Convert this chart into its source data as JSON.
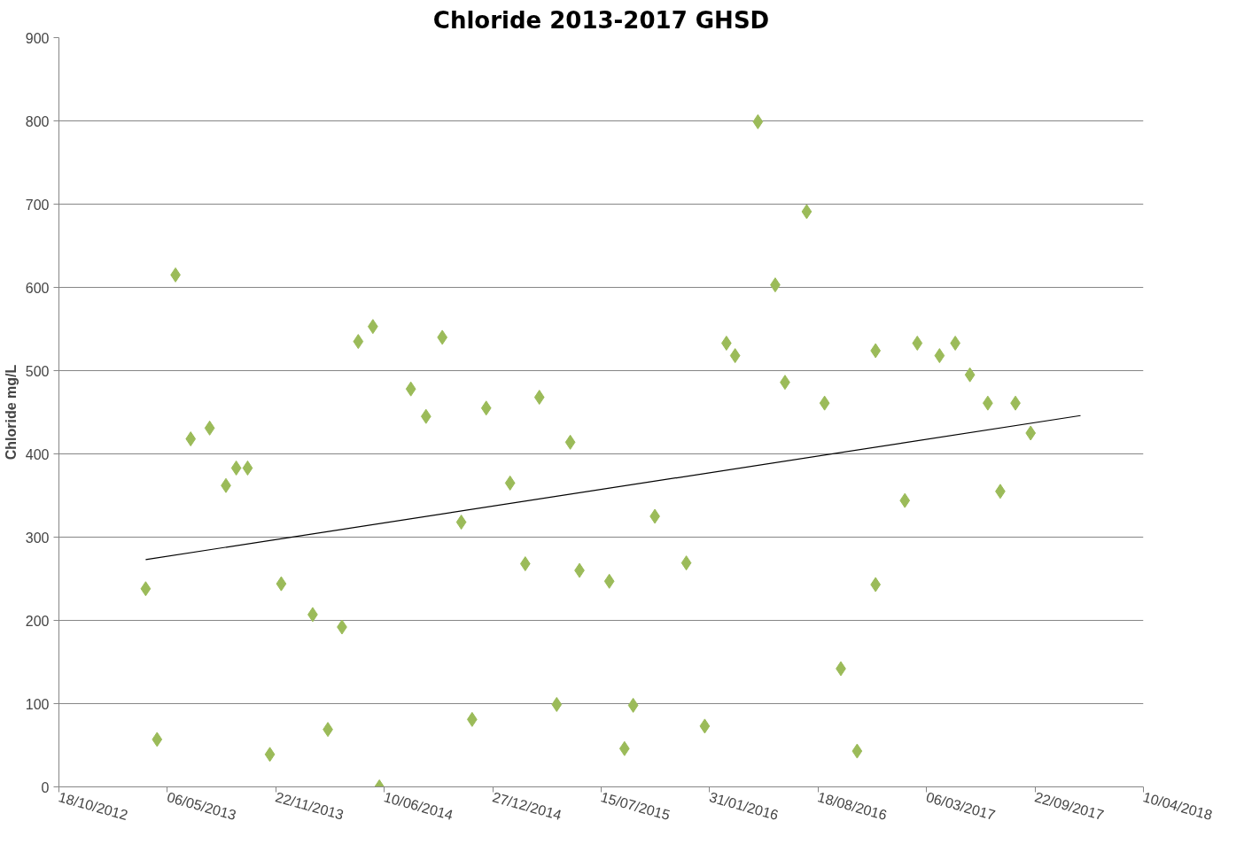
{
  "chart_data": {
    "type": "scatter",
    "title": "Chloride 2013-2017 GHSD",
    "ylabel": "Chloride mg/L",
    "marker": "diamond",
    "grid": "y",
    "ylim": [
      0,
      900
    ],
    "yticks": [
      0,
      100,
      200,
      300,
      400,
      500,
      600,
      700,
      800,
      900
    ],
    "xlim": [
      "2012-10-18",
      "2018-04-10"
    ],
    "xticks": [
      {
        "value": "2012-10-18",
        "label": "18/10/2012"
      },
      {
        "value": "2013-05-06",
        "label": "06/05/2013"
      },
      {
        "value": "2013-11-22",
        "label": "22/11/2013"
      },
      {
        "value": "2014-06-10",
        "label": "10/06/2014"
      },
      {
        "value": "2014-12-27",
        "label": "27/12/2014"
      },
      {
        "value": "2015-07-15",
        "label": "15/07/2015"
      },
      {
        "value": "2016-01-31",
        "label": "31/01/2016"
      },
      {
        "value": "2016-08-18",
        "label": "18/08/2016"
      },
      {
        "value": "2017-03-06",
        "label": "06/03/2017"
      },
      {
        "value": "2017-09-22",
        "label": "22/09/2017"
      },
      {
        "value": "2018-04-10",
        "label": "10/04/2018"
      }
    ],
    "series": [
      {
        "color": "#9bbb59",
        "x": [
          "2013-03-27",
          "2013-04-17",
          "2013-05-21",
          "2013-06-18",
          "2013-07-23",
          "2013-08-22",
          "2013-09-10",
          "2013-10-01",
          "2013-11-11",
          "2013-12-02",
          "2014-01-29",
          "2014-02-26",
          "2014-03-24",
          "2014-04-23",
          "2014-05-20",
          "2014-06-01",
          "2014-07-29",
          "2014-08-26",
          "2014-09-25",
          "2014-10-30",
          "2014-11-19",
          "2014-12-15",
          "2015-01-28",
          "2015-02-25",
          "2015-03-23",
          "2015-04-24",
          "2015-05-19",
          "2015-06-05",
          "2015-07-30",
          "2015-08-27",
          "2015-09-12",
          "2015-10-22",
          "2015-12-19",
          "2016-01-22",
          "2016-03-02",
          "2016-03-18",
          "2016-04-29",
          "2016-05-31",
          "2016-06-18",
          "2016-07-28",
          "2016-08-30",
          "2016-09-29",
          "2016-10-29",
          "2016-12-02",
          "2016-12-02",
          "2017-01-25",
          "2017-02-17",
          "2017-03-30",
          "2017-04-28",
          "2017-05-25",
          "2017-06-27",
          "2017-07-20",
          "2017-08-17",
          "2017-09-14"
        ],
        "values": [
          238,
          57,
          615,
          418,
          431,
          362,
          383,
          383,
          39,
          244,
          207,
          69,
          192,
          535,
          553,
          0,
          478,
          445,
          540,
          318,
          81,
          455,
          365,
          268,
          468,
          99,
          414,
          260,
          247,
          46,
          98,
          325,
          269,
          73,
          533,
          518,
          799,
          603,
          486,
          691,
          461,
          142,
          43,
          524,
          243,
          344,
          533,
          518,
          533,
          495,
          461,
          355,
          461,
          425
        ]
      },
      {
        "type": "line",
        "marker": "none",
        "color": "#000000",
        "x": [
          "2013-03-27",
          "2017-12-15"
        ],
        "values": [
          273,
          446
        ]
      }
    ]
  }
}
